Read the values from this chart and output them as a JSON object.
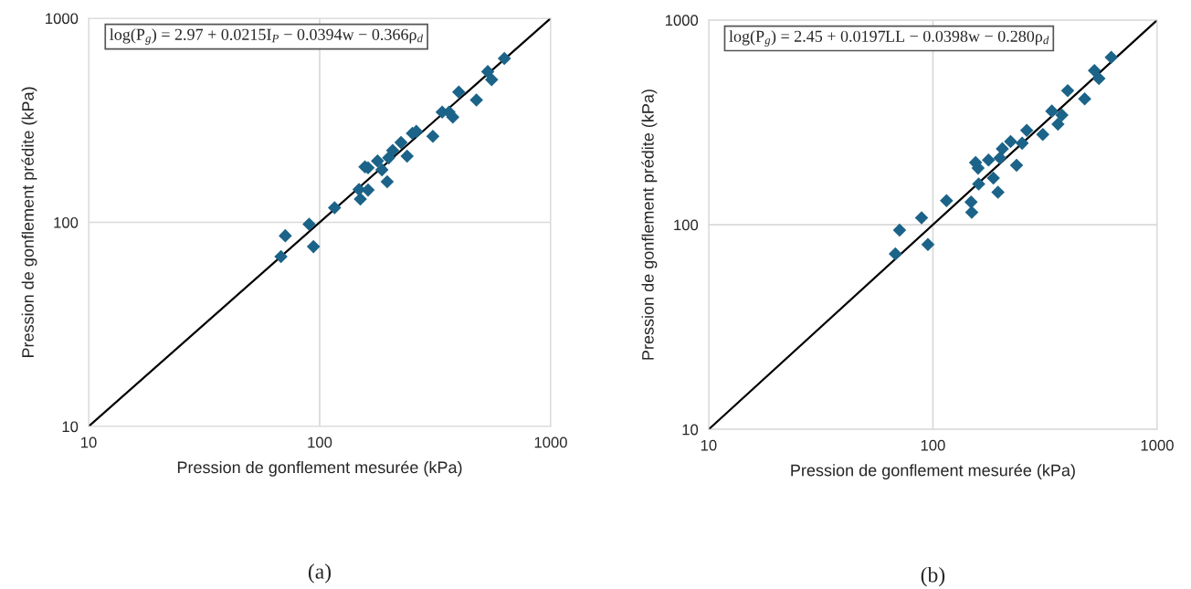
{
  "chart_data": [
    {
      "type": "scatter",
      "xlabel": "Pression de gonflement mesurée (kPa)",
      "ylabel": "Pression de gonflement prédite (kPa)",
      "log": "xy",
      "grid": true,
      "xlim": [
        10,
        1000
      ],
      "ylim": [
        10,
        1000
      ],
      "xticks": [
        10,
        100,
        1000
      ],
      "yticks": [
        10,
        100,
        1000
      ],
      "annotations": [
        "log(P$_{g}$) = 2.97 + 0.0215I$_{P}$ − 0.0394w − 0.366ρ$_{d}$",
        "(a)"
      ],
      "series": [
        {
          "marker": "diamond",
          "color": "#1b6388",
          "x": [
            630,
            534,
            555,
            400,
            477,
            339,
            363,
            377,
            252,
            262,
            309,
            225,
            207,
            199,
            239,
            178,
            186,
            157,
            162,
            196,
            148,
            162,
            150,
            116,
            90,
            71,
            94,
            68
          ],
          "values": [
            635,
            548,
            500,
            435,
            398,
            347,
            347,
            328,
            273,
            279,
            264,
            246,
            225,
            207,
            211,
            200,
            181,
            187,
            185,
            158,
            145,
            144,
            130,
            118,
            98,
            86,
            76,
            68
          ]
        },
        {
          "type": "line",
          "color": "#000000",
          "x": [
            10,
            1000
          ],
          "values": [
            10,
            1000
          ]
        }
      ]
    },
    {
      "type": "scatter",
      "xlabel": "Pression de gonflement mesurée (kPa)",
      "ylabel": "Pression de gonflement prédite (kPa)",
      "log": "xy",
      "grid": true,
      "xlim": [
        10,
        1000
      ],
      "ylim": [
        10,
        1000
      ],
      "xticks": [
        10,
        100,
        1000
      ],
      "yticks": [
        10,
        100,
        1000
      ],
      "annotations": [
        "log(P$_{g}$) = 2.45 + 0.0197LL − 0.0398w − 0.280ρ$_{d}$",
        "(b)"
      ],
      "series": [
        {
          "marker": "diamond",
          "color": "#1b6388",
          "x": [
            624,
            525,
            550,
            399,
            475,
            339,
            376,
            361,
            262,
            250,
            309,
            222,
            204,
            199,
            177,
            236,
            155,
            159,
            186,
            160,
            195,
            115,
            148,
            149,
            89,
            71,
            95,
            68
          ],
          "values": [
            658,
            566,
            518,
            452,
            412,
            359,
            343,
            310,
            289,
            250,
            276,
            255,
            235,
            212,
            207,
            195,
            201,
            189,
            169,
            158,
            144,
            131,
            129,
            115,
            108,
            94,
            80,
            72
          ]
        },
        {
          "type": "line",
          "color": "#000000",
          "x": [
            10,
            1000
          ],
          "values": [
            10,
            1000
          ]
        }
      ]
    }
  ]
}
